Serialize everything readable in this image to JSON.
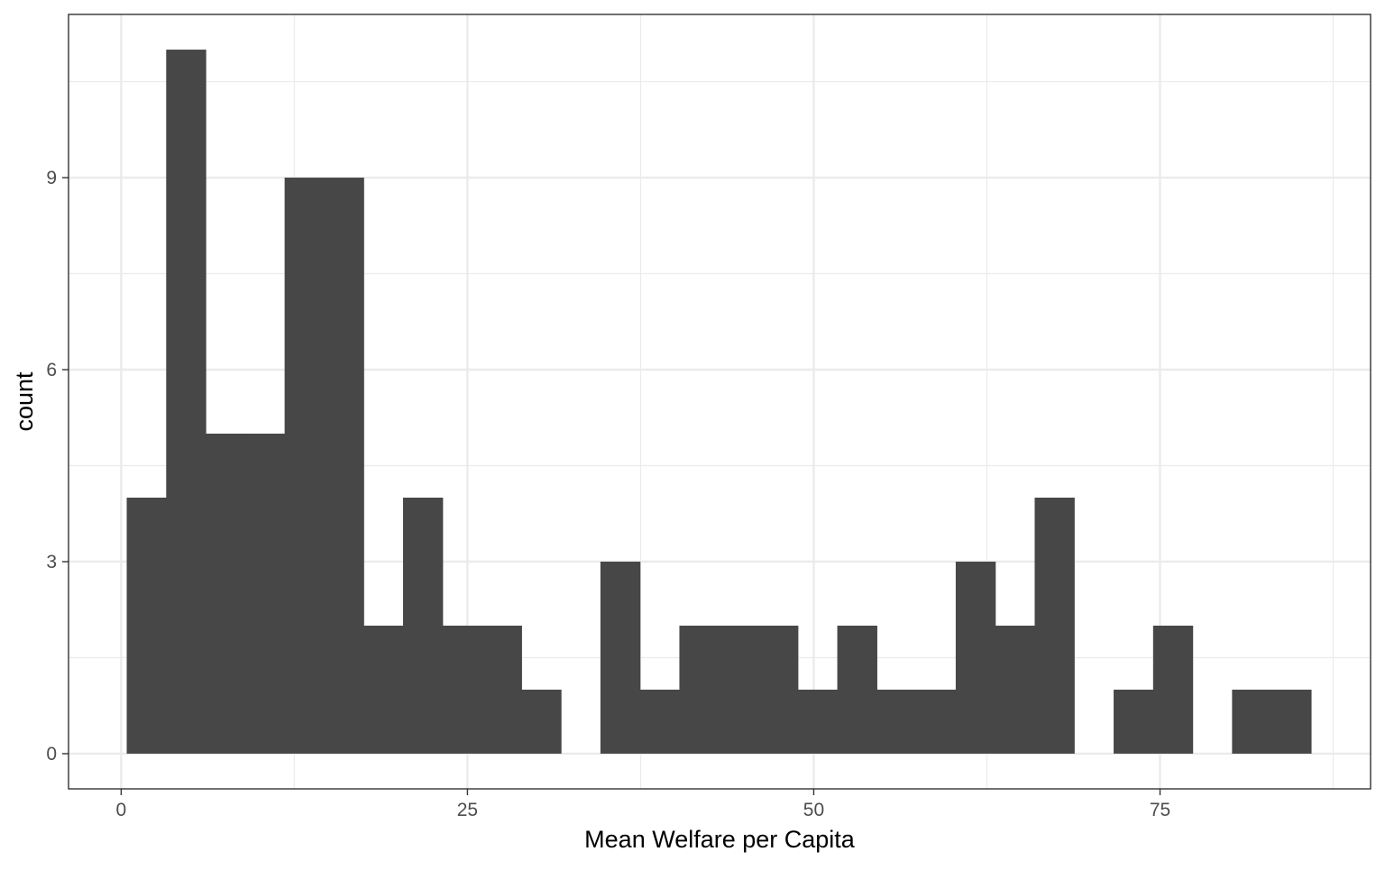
{
  "chart_data": {
    "type": "bar",
    "subtype": "histogram",
    "title": "",
    "xlabel": "Mean Welfare per Capita",
    "ylabel": "count",
    "xlim": [
      -3.8,
      90.2
    ],
    "ylim": [
      -0.55,
      11.55
    ],
    "x_ticks": [
      0,
      25,
      50,
      75
    ],
    "y_ticks": [
      0,
      3,
      6,
      9
    ],
    "x_minor_gridlines": [
      12.5,
      37.5,
      62.5,
      87.5
    ],
    "y_minor_gridlines": [
      1.5,
      4.5,
      7.5,
      10.5
    ],
    "grid": true,
    "bar_color": "#474747",
    "panel_border_color": "#333333",
    "major_grid_color": "#ebebeb",
    "minor_grid_color": "#ebebeb",
    "bins": [
      {
        "x_start": 0.4,
        "x_end": 3.25,
        "count": 4
      },
      {
        "x_start": 3.25,
        "x_end": 6.1,
        "count": 11
      },
      {
        "x_start": 6.1,
        "x_end": 8.95,
        "count": 5
      },
      {
        "x_start": 8.95,
        "x_end": 11.8,
        "count": 5
      },
      {
        "x_start": 11.8,
        "x_end": 14.65,
        "count": 9
      },
      {
        "x_start": 14.65,
        "x_end": 17.5,
        "count": 9
      },
      {
        "x_start": 17.5,
        "x_end": 20.35,
        "count": 2
      },
      {
        "x_start": 20.35,
        "x_end": 23.2,
        "count": 4
      },
      {
        "x_start": 23.2,
        "x_end": 26.05,
        "count": 2
      },
      {
        "x_start": 26.05,
        "x_end": 28.9,
        "count": 2
      },
      {
        "x_start": 28.9,
        "x_end": 31.75,
        "count": 1
      },
      {
        "x_start": 31.75,
        "x_end": 34.6,
        "count": 0
      },
      {
        "x_start": 34.6,
        "x_end": 37.45,
        "count": 3
      },
      {
        "x_start": 37.45,
        "x_end": 40.3,
        "count": 1
      },
      {
        "x_start": 40.3,
        "x_end": 43.15,
        "count": 2
      },
      {
        "x_start": 43.15,
        "x_end": 46.0,
        "count": 2
      },
      {
        "x_start": 46.0,
        "x_end": 48.85,
        "count": 2
      },
      {
        "x_start": 48.85,
        "x_end": 51.7,
        "count": 1
      },
      {
        "x_start": 51.7,
        "x_end": 54.55,
        "count": 2
      },
      {
        "x_start": 54.55,
        "x_end": 57.4,
        "count": 1
      },
      {
        "x_start": 57.4,
        "x_end": 60.25,
        "count": 1
      },
      {
        "x_start": 60.25,
        "x_end": 63.1,
        "count": 3
      },
      {
        "x_start": 63.1,
        "x_end": 65.95,
        "count": 2
      },
      {
        "x_start": 65.95,
        "x_end": 68.8,
        "count": 4
      },
      {
        "x_start": 68.8,
        "x_end": 71.65,
        "count": 0
      },
      {
        "x_start": 71.65,
        "x_end": 74.5,
        "count": 1
      },
      {
        "x_start": 74.5,
        "x_end": 77.35,
        "count": 2
      },
      {
        "x_start": 77.35,
        "x_end": 80.2,
        "count": 0
      },
      {
        "x_start": 80.2,
        "x_end": 83.05,
        "count": 1
      },
      {
        "x_start": 83.05,
        "x_end": 85.9,
        "count": 1
      }
    ]
  }
}
